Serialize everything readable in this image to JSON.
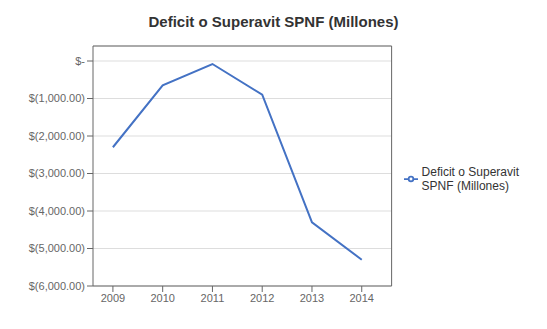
{
  "chart_data": {
    "type": "line",
    "title": "Deficit o Superavit SPNF (Millones)",
    "x": [
      2009,
      2010,
      2011,
      2012,
      2013,
      2014
    ],
    "series": [
      {
        "name": "Deficit o Superavit\nSPNF (Millones)",
        "color": "#4472C4",
        "values": [
          -2300,
          -650,
          -80,
          -900,
          -4300,
          -5300
        ]
      }
    ],
    "xlim": [
      2008.6,
      2014.6
    ],
    "xticks": [
      2009,
      2010,
      2011,
      2012,
      2013,
      2014
    ],
    "ylim": [
      -6000,
      400
    ],
    "yticks": [
      {
        "value": 0,
        "label": "$-"
      },
      {
        "value": -1000,
        "label": "$(1,000.00)"
      },
      {
        "value": -2000,
        "label": "$(2,000.00)"
      },
      {
        "value": -3000,
        "label": "$(3,000.00)"
      },
      {
        "value": -4000,
        "label": "$(4,000.00)"
      },
      {
        "value": -5000,
        "label": "$(5,000.00)"
      },
      {
        "value": -6000,
        "label": "$(6,000.00)"
      }
    ],
    "grid": "y",
    "legend": "right"
  }
}
